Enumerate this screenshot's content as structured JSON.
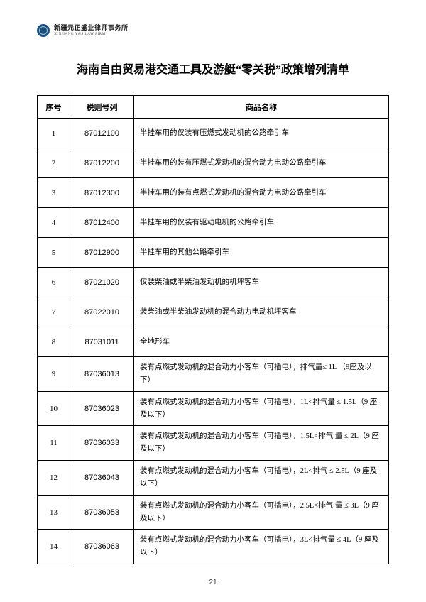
{
  "header": {
    "firm_name_cn": "新疆元正盛业律师事务所",
    "firm_name_en": "XINJIANG Y&S LAW FIRM"
  },
  "title": "海南自由贸易港交通工具及游艇“零关税”政策增列清单",
  "table": {
    "columns": {
      "seq": "序号",
      "code": "税则号列",
      "name": "商品名称"
    },
    "rows": [
      {
        "seq": "1",
        "code": "87012100",
        "name": "半挂车用的仅装有压燃式发动机的公路牵引车"
      },
      {
        "seq": "2",
        "code": "87012200",
        "name": "半挂车用的装有压燃式发动机的混合动力电动公路牵引车"
      },
      {
        "seq": "3",
        "code": "87012300",
        "name": "半挂车用的装有点燃式发动机的混合动力电动公路牵引车"
      },
      {
        "seq": "4",
        "code": "87012400",
        "name": "半挂车用的仅装有驱动电机的公路牵引车"
      },
      {
        "seq": "5",
        "code": "87012900",
        "name": "半挂车用的其他公路牵引车"
      },
      {
        "seq": "6",
        "code": "87021020",
        "name": "仅装柴油或半柴油发动机的机坪客车"
      },
      {
        "seq": "7",
        "code": "87022010",
        "name": "装柴油或半柴油发动机的混合动力电动机坪客车"
      },
      {
        "seq": "8",
        "code": "87031011",
        "name": "全地形车"
      },
      {
        "seq": "9",
        "code": "87036013",
        "name": "装有点燃式发动机的混合动力小客车（可插电），排气量≤ 1L （9座及以下）"
      },
      {
        "seq": "10",
        "code": "87036023",
        "name": "装有点燃式发动机的混合动力小客车（可插电），1L<排气量 ≤ 1.5L（9 座及以下）"
      },
      {
        "seq": "11",
        "code": "87036033",
        "name": "装有点燃式发动机的混合动力小客车（可插电），1.5L<排气 量 ≤ 2L（9 座及以下）"
      },
      {
        "seq": "12",
        "code": "87036043",
        "name": "装有点燃式发动机的混合动力小客车（可插电），2L<排气 ≤ 2.5L（9 座及以下）"
      },
      {
        "seq": "13",
        "code": "87036053",
        "name": "装有点燃式发动机的混合动力小客车（可插电），2.5L<排气 量 ≤ 3L（9 座及以下）"
      },
      {
        "seq": "14",
        "code": "87036063",
        "name": "装有点燃式发动机的混合动力小客车（可插电），3L<排气量 ≤ 4L（9 座及以下）"
      }
    ]
  },
  "page_number": "21",
  "colors": {
    "text": "#000000",
    "border": "#000000",
    "background": "#ffffff",
    "logo_bg": "#1a4d7a"
  }
}
